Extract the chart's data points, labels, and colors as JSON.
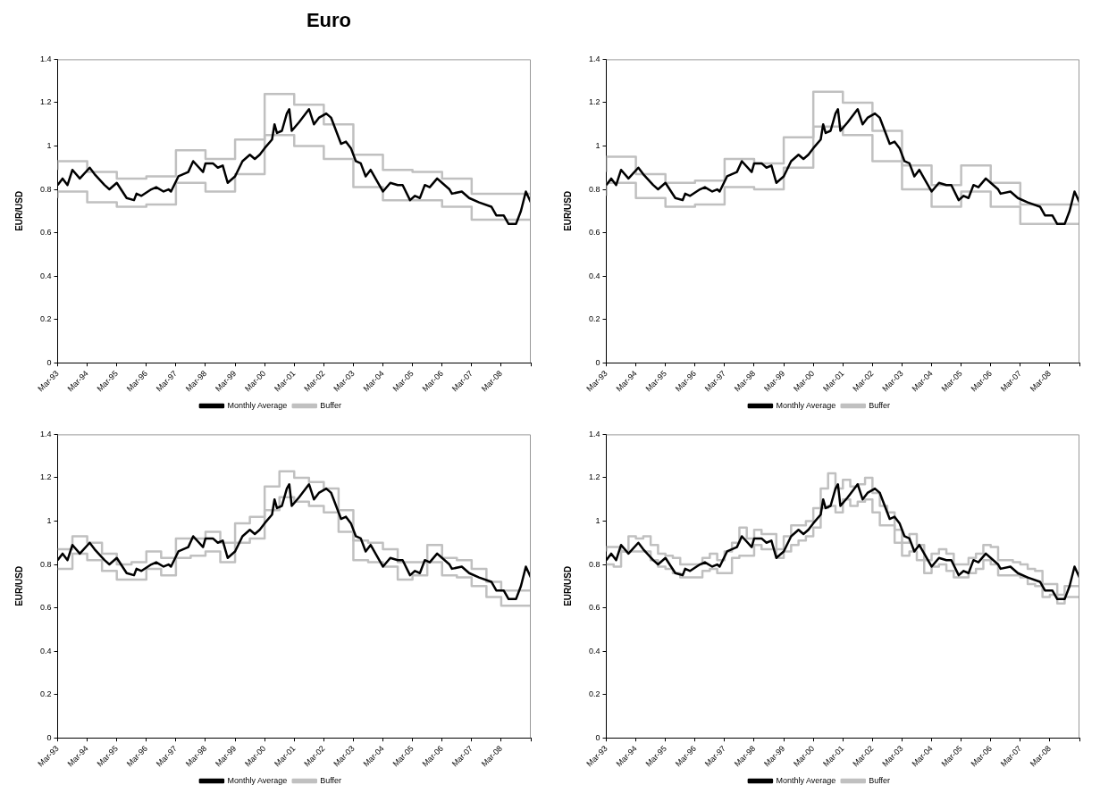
{
  "chart_data": [
    {
      "type": "line",
      "title": "Euro",
      "ylabel": "EUR/USD",
      "legend": "bottom",
      "grid": false,
      "marker": "none",
      "xlim": [
        "1993-03",
        "2009-03"
      ],
      "ylim": [
        0,
        1.4
      ],
      "yticks": [
        0,
        0.2,
        0.4,
        0.6,
        0.8,
        1,
        1.2,
        1.4
      ],
      "xticks": [
        {
          "value": "1993-03",
          "label": "Mar-93"
        },
        {
          "value": "1994-03",
          "label": "Mar-94"
        },
        {
          "value": "1995-03",
          "label": "Mar-95"
        },
        {
          "value": "1996-03",
          "label": "Mar-96"
        },
        {
          "value": "1997-03",
          "label": "Mar-97"
        },
        {
          "value": "1998-03",
          "label": "Mar-98"
        },
        {
          "value": "1999-03",
          "label": "Mar-99"
        },
        {
          "value": "2000-03",
          "label": "Mar-00"
        },
        {
          "value": "2001-03",
          "label": "Mar-01"
        },
        {
          "value": "2002-03",
          "label": "Mar-02"
        },
        {
          "value": "2003-03",
          "label": "Mar-03"
        },
        {
          "value": "2004-03",
          "label": "Mar-04"
        },
        {
          "value": "2005-03",
          "label": "Mar-05"
        },
        {
          "value": "2006-03",
          "label": "Mar-06"
        },
        {
          "value": "2007-03",
          "label": "Mar-07"
        },
        {
          "value": "2008-03",
          "label": "Mar-08"
        },
        {
          "value": "2009-03",
          "label": null
        }
      ],
      "series": [
        {
          "name": "Monthly Average",
          "type": "line",
          "color": "#000000",
          "x": [
            "1993-03",
            "1993-05",
            "1993-07",
            "1993-09",
            "1993-12",
            "1994-04",
            "1994-06",
            "1994-10",
            "1994-12",
            "1995-03",
            "1995-07",
            "1995-10",
            "1995-11",
            "1996-01",
            "1996-05",
            "1996-07",
            "1996-10",
            "1996-12",
            "1997-01",
            "1997-04",
            "1997-08",
            "1997-10",
            "1998-02",
            "1998-03",
            "1998-06",
            "1998-08",
            "1998-10",
            "1998-12",
            "1999-03",
            "1999-06",
            "1999-09",
            "1999-11",
            "2000-01",
            "2000-03",
            "2000-06",
            "2000-07",
            "2000-08",
            "2000-10",
            "2000-12",
            "2001-01",
            "2001-02",
            "2001-05",
            "2001-09",
            "2001-11",
            "2002-01",
            "2002-04",
            "2002-06",
            "2002-10",
            "2002-12",
            "2003-02",
            "2003-04",
            "2003-06",
            "2003-08",
            "2003-10",
            "2003-12",
            "2004-03",
            "2004-06",
            "2004-09",
            "2004-11",
            "2005-02",
            "2005-04",
            "2005-06",
            "2005-08",
            "2005-10",
            "2006-01",
            "2006-03",
            "2006-06",
            "2006-07",
            "2006-11",
            "2007-02",
            "2007-06",
            "2007-11",
            "2008-01",
            "2008-04",
            "2008-06",
            "2008-09",
            "2008-11",
            "2009-01",
            "2009-03"
          ],
          "values": [
            0.82,
            0.85,
            0.82,
            0.89,
            0.85,
            0.9,
            0.87,
            0.82,
            0.8,
            0.83,
            0.76,
            0.75,
            0.78,
            0.77,
            0.8,
            0.81,
            0.79,
            0.8,
            0.79,
            0.86,
            0.88,
            0.93,
            0.88,
            0.92,
            0.92,
            0.9,
            0.91,
            0.83,
            0.86,
            0.93,
            0.96,
            0.94,
            0.96,
            0.99,
            1.03,
            1.1,
            1.06,
            1.07,
            1.15,
            1.17,
            1.07,
            1.11,
            1.17,
            1.1,
            1.13,
            1.15,
            1.13,
            1.01,
            1.02,
            0.99,
            0.93,
            0.92,
            0.86,
            0.89,
            0.85,
            0.79,
            0.83,
            0.82,
            0.82,
            0.75,
            0.77,
            0.76,
            0.82,
            0.81,
            0.85,
            0.83,
            0.8,
            0.78,
            0.79,
            0.76,
            0.74,
            0.72,
            0.68,
            0.68,
            0.64,
            0.64,
            0.7,
            0.79,
            0.74
          ]
        },
        {
          "name": "Buffer",
          "type": "step",
          "color": "#c0c0c0",
          "x": [
            "1993-03",
            "1994-03",
            "1995-03",
            "1996-03",
            "1997-03",
            "1998-03",
            "1999-03",
            "2000-03",
            "2001-03",
            "2002-03",
            "2003-03",
            "2004-03",
            "2005-03",
            "2006-03",
            "2007-03",
            "2008-03",
            "2009-03"
          ],
          "values": [
            0.89,
            0.93,
            0.88,
            0.85,
            0.86,
            0.98,
            0.94,
            1.03,
            1.24,
            1.19,
            1.1,
            0.96,
            0.89,
            0.88,
            0.85,
            0.78,
            0.78
          ]
        },
        {
          "type": "step",
          "color": "#c0c0c0",
          "x": [
            "1993-03",
            "1994-03",
            "1995-03",
            "1996-03",
            "1997-03",
            "1998-03",
            "1999-03",
            "2000-03",
            "2001-03",
            "2002-03",
            "2003-03",
            "2004-03",
            "2005-03",
            "2006-03",
            "2007-03",
            "2008-03",
            "2009-03"
          ],
          "values": [
            0.76,
            0.79,
            0.74,
            0.72,
            0.73,
            0.83,
            0.79,
            0.87,
            1.05,
            1.0,
            0.94,
            0.81,
            0.75,
            0.75,
            0.72,
            0.66,
            0.66
          ]
        }
      ]
    },
    {
      "type": "line",
      "ylabel": "EUR/USD",
      "legend": "bottom",
      "grid": false,
      "marker": "none",
      "xlim": [
        "1993-03",
        "2009-03"
      ],
      "ylim": [
        0,
        1.4
      ],
      "yticks": [
        0,
        0.2,
        0.4,
        0.6,
        0.8,
        1,
        1.2,
        1.4
      ],
      "xticks": [
        {
          "value": "1993-03",
          "label": "Mar-93"
        },
        {
          "value": "1994-03",
          "label": "Mar-94"
        },
        {
          "value": "1995-03",
          "label": "Mar-95"
        },
        {
          "value": "1996-03",
          "label": "Mar-96"
        },
        {
          "value": "1997-03",
          "label": "Mar-97"
        },
        {
          "value": "1998-03",
          "label": "Mar-98"
        },
        {
          "value": "1999-03",
          "label": "Mar-99"
        },
        {
          "value": "2000-03",
          "label": "Mar-00"
        },
        {
          "value": "2001-03",
          "label": "Mar-01"
        },
        {
          "value": "2002-03",
          "label": "Mar-02"
        },
        {
          "value": "2003-03",
          "label": "Mar-03"
        },
        {
          "value": "2004-03",
          "label": "Mar-04"
        },
        {
          "value": "2005-03",
          "label": "Mar-05"
        },
        {
          "value": "2006-03",
          "label": "Mar-06"
        },
        {
          "value": "2007-03",
          "label": "Mar-07"
        },
        {
          "value": "2008-03",
          "label": "Mar-08"
        },
        {
          "value": "2009-03",
          "label": null
        }
      ],
      "series": [
        {
          "name": "Monthly Average",
          "type": "line",
          "color": "#000000",
          "x": [
            "1993-03",
            "1993-05",
            "1993-07",
            "1993-09",
            "1993-12",
            "1994-04",
            "1994-06",
            "1994-10",
            "1994-12",
            "1995-03",
            "1995-07",
            "1995-10",
            "1995-11",
            "1996-01",
            "1996-05",
            "1996-07",
            "1996-10",
            "1996-12",
            "1997-01",
            "1997-04",
            "1997-08",
            "1997-10",
            "1998-02",
            "1998-03",
            "1998-06",
            "1998-08",
            "1998-10",
            "1998-12",
            "1999-03",
            "1999-06",
            "1999-09",
            "1999-11",
            "2000-01",
            "2000-03",
            "2000-06",
            "2000-07",
            "2000-08",
            "2000-10",
            "2000-12",
            "2001-01",
            "2001-02",
            "2001-05",
            "2001-09",
            "2001-11",
            "2002-01",
            "2002-04",
            "2002-06",
            "2002-10",
            "2002-12",
            "2003-02",
            "2003-04",
            "2003-06",
            "2003-08",
            "2003-10",
            "2003-12",
            "2004-03",
            "2004-06",
            "2004-09",
            "2004-11",
            "2005-02",
            "2005-04",
            "2005-06",
            "2005-08",
            "2005-10",
            "2006-01",
            "2006-03",
            "2006-06",
            "2006-07",
            "2006-11",
            "2007-02",
            "2007-06",
            "2007-11",
            "2008-01",
            "2008-04",
            "2008-06",
            "2008-09",
            "2008-11",
            "2009-01",
            "2009-03"
          ],
          "values": [
            0.82,
            0.85,
            0.82,
            0.89,
            0.85,
            0.9,
            0.87,
            0.82,
            0.8,
            0.83,
            0.76,
            0.75,
            0.78,
            0.77,
            0.8,
            0.81,
            0.79,
            0.8,
            0.79,
            0.86,
            0.88,
            0.93,
            0.88,
            0.92,
            0.92,
            0.9,
            0.91,
            0.83,
            0.86,
            0.93,
            0.96,
            0.94,
            0.96,
            0.99,
            1.03,
            1.1,
            1.06,
            1.07,
            1.15,
            1.17,
            1.07,
            1.11,
            1.17,
            1.1,
            1.13,
            1.15,
            1.13,
            1.01,
            1.02,
            0.99,
            0.93,
            0.92,
            0.86,
            0.89,
            0.85,
            0.79,
            0.83,
            0.82,
            0.82,
            0.75,
            0.77,
            0.76,
            0.82,
            0.81,
            0.85,
            0.83,
            0.8,
            0.78,
            0.79,
            0.76,
            0.74,
            0.72,
            0.68,
            0.68,
            0.64,
            0.64,
            0.7,
            0.79,
            0.74
          ]
        },
        {
          "name": "Buffer",
          "type": "step",
          "color": "#c0c0c0",
          "x": [
            "1993-03",
            "1994-03",
            "1995-03",
            "1996-03",
            "1997-03",
            "1998-03",
            "1999-03",
            "2000-03",
            "2001-03",
            "2002-03",
            "2003-03",
            "2004-03",
            "2005-03",
            "2006-03",
            "2007-03",
            "2008-03",
            "2009-03"
          ],
          "values": [
            0.88,
            0.95,
            0.87,
            0.83,
            0.84,
            0.94,
            0.92,
            1.04,
            1.25,
            1.2,
            1.07,
            0.91,
            0.82,
            0.91,
            0.83,
            0.73,
            0.73
          ]
        },
        {
          "type": "step",
          "color": "#c0c0c0",
          "x": [
            "1993-03",
            "1994-03",
            "1995-03",
            "1996-03",
            "1997-03",
            "1998-03",
            "1999-03",
            "2000-03",
            "2001-03",
            "2002-03",
            "2003-03",
            "2004-03",
            "2005-03",
            "2006-03",
            "2007-03",
            "2008-03",
            "2009-03"
          ],
          "values": [
            0.77,
            0.83,
            0.76,
            0.72,
            0.73,
            0.81,
            0.8,
            0.9,
            1.09,
            1.05,
            0.93,
            0.8,
            0.72,
            0.79,
            0.72,
            0.64,
            0.64
          ]
        }
      ]
    },
    {
      "type": "line",
      "ylabel": "EUR/USD",
      "legend": "bottom",
      "grid": false,
      "marker": "none",
      "xlim": [
        "1993-03",
        "2009-03"
      ],
      "ylim": [
        0,
        1.4
      ],
      "yticks": [
        0,
        0.2,
        0.4,
        0.6,
        0.8,
        1,
        1.2,
        1.4
      ],
      "xticks": [
        {
          "value": "1993-03",
          "label": "Mar-93"
        },
        {
          "value": "1994-03",
          "label": "Mar-94"
        },
        {
          "value": "1995-03",
          "label": "Mar-95"
        },
        {
          "value": "1996-03",
          "label": "Mar-96"
        },
        {
          "value": "1997-03",
          "label": "Mar-97"
        },
        {
          "value": "1998-03",
          "label": "Mar-98"
        },
        {
          "value": "1999-03",
          "label": "Mar-99"
        },
        {
          "value": "2000-03",
          "label": "Mar-00"
        },
        {
          "value": "2001-03",
          "label": "Mar-01"
        },
        {
          "value": "2002-03",
          "label": "Mar-02"
        },
        {
          "value": "2003-03",
          "label": "Mar-03"
        },
        {
          "value": "2004-03",
          "label": "Mar-04"
        },
        {
          "value": "2005-03",
          "label": "Mar-05"
        },
        {
          "value": "2006-03",
          "label": "Mar-06"
        },
        {
          "value": "2007-03",
          "label": "Mar-07"
        },
        {
          "value": "2008-03",
          "label": "Mar-08"
        },
        {
          "value": "2009-03",
          "label": null
        }
      ],
      "series": [
        {
          "name": "Monthly Average",
          "type": "line",
          "color": "#000000",
          "x": [
            "1993-03",
            "1993-05",
            "1993-07",
            "1993-09",
            "1993-12",
            "1994-04",
            "1994-06",
            "1994-10",
            "1994-12",
            "1995-03",
            "1995-07",
            "1995-10",
            "1995-11",
            "1996-01",
            "1996-05",
            "1996-07",
            "1996-10",
            "1996-12",
            "1997-01",
            "1997-04",
            "1997-08",
            "1997-10",
            "1998-02",
            "1998-03",
            "1998-06",
            "1998-08",
            "1998-10",
            "1998-12",
            "1999-03",
            "1999-06",
            "1999-09",
            "1999-11",
            "2000-01",
            "2000-03",
            "2000-06",
            "2000-07",
            "2000-08",
            "2000-10",
            "2000-12",
            "2001-01",
            "2001-02",
            "2001-05",
            "2001-09",
            "2001-11",
            "2002-01",
            "2002-04",
            "2002-06",
            "2002-10",
            "2002-12",
            "2003-02",
            "2003-04",
            "2003-06",
            "2003-08",
            "2003-10",
            "2003-12",
            "2004-03",
            "2004-06",
            "2004-09",
            "2004-11",
            "2005-02",
            "2005-04",
            "2005-06",
            "2005-08",
            "2005-10",
            "2006-01",
            "2006-03",
            "2006-06",
            "2006-07",
            "2006-11",
            "2007-02",
            "2007-06",
            "2007-11",
            "2008-01",
            "2008-04",
            "2008-06",
            "2008-09",
            "2008-11",
            "2009-01",
            "2009-03"
          ],
          "values": [
            0.82,
            0.85,
            0.82,
            0.89,
            0.85,
            0.9,
            0.87,
            0.82,
            0.8,
            0.83,
            0.76,
            0.75,
            0.78,
            0.77,
            0.8,
            0.81,
            0.79,
            0.8,
            0.79,
            0.86,
            0.88,
            0.93,
            0.88,
            0.92,
            0.92,
            0.9,
            0.91,
            0.83,
            0.86,
            0.93,
            0.96,
            0.94,
            0.96,
            0.99,
            1.03,
            1.1,
            1.06,
            1.07,
            1.15,
            1.17,
            1.07,
            1.11,
            1.17,
            1.1,
            1.13,
            1.15,
            1.13,
            1.01,
            1.02,
            0.99,
            0.93,
            0.92,
            0.86,
            0.89,
            0.85,
            0.79,
            0.83,
            0.82,
            0.82,
            0.75,
            0.77,
            0.76,
            0.82,
            0.81,
            0.85,
            0.83,
            0.8,
            0.78,
            0.79,
            0.76,
            0.74,
            0.72,
            0.68,
            0.68,
            0.64,
            0.64,
            0.7,
            0.79,
            0.74
          ]
        },
        {
          "name": "Buffer",
          "type": "step",
          "color": "#c0c0c0",
          "x": [
            "1993-03",
            "1993-09",
            "1994-03",
            "1994-09",
            "1995-03",
            "1995-09",
            "1996-03",
            "1996-09",
            "1997-03",
            "1997-09",
            "1998-03",
            "1998-09",
            "1999-03",
            "1999-09",
            "2000-03",
            "2000-09",
            "2001-03",
            "2001-09",
            "2002-03",
            "2002-09",
            "2003-03",
            "2003-09",
            "2004-03",
            "2004-09",
            "2005-03",
            "2005-09",
            "2006-03",
            "2006-09",
            "2007-03",
            "2007-09",
            "2008-03",
            "2008-09",
            "2009-03"
          ],
          "values": [
            0.87,
            0.87,
            0.93,
            0.9,
            0.85,
            0.8,
            0.81,
            0.86,
            0.83,
            0.92,
            0.92,
            0.95,
            0.9,
            0.99,
            1.02,
            1.16,
            1.23,
            1.2,
            1.18,
            1.15,
            1.05,
            0.91,
            0.9,
            0.87,
            0.81,
            0.81,
            0.89,
            0.83,
            0.82,
            0.78,
            0.72,
            0.68,
            0.68
          ]
        },
        {
          "type": "step",
          "color": "#c0c0c0",
          "x": [
            "1993-03",
            "1993-09",
            "1994-03",
            "1994-09",
            "1995-03",
            "1995-09",
            "1996-03",
            "1996-09",
            "1997-03",
            "1997-09",
            "1998-03",
            "1998-09",
            "1999-03",
            "1999-09",
            "2000-03",
            "2000-09",
            "2001-03",
            "2001-09",
            "2002-03",
            "2002-09",
            "2003-03",
            "2003-09",
            "2004-03",
            "2004-09",
            "2005-03",
            "2005-09",
            "2006-03",
            "2006-09",
            "2007-03",
            "2007-09",
            "2008-03",
            "2008-09",
            "2009-03"
          ],
          "values": [
            0.78,
            0.78,
            0.85,
            0.82,
            0.77,
            0.73,
            0.73,
            0.78,
            0.75,
            0.83,
            0.84,
            0.86,
            0.81,
            0.9,
            0.92,
            1.05,
            1.11,
            1.09,
            1.07,
            1.04,
            0.95,
            0.82,
            0.81,
            0.79,
            0.73,
            0.75,
            0.81,
            0.75,
            0.74,
            0.7,
            0.65,
            0.61,
            0.61
          ]
        }
      ]
    },
    {
      "type": "line",
      "ylabel": "EUR/USD",
      "legend": "bottom",
      "grid": false,
      "marker": "none",
      "xlim": [
        "1993-03",
        "2009-03"
      ],
      "ylim": [
        0,
        1.4
      ],
      "yticks": [
        0,
        0.2,
        0.4,
        0.6,
        0.8,
        1,
        1.2,
        1.4
      ],
      "xticks": [
        {
          "value": "1993-03",
          "label": "Mar-93"
        },
        {
          "value": "1994-03",
          "label": "Mar-94"
        },
        {
          "value": "1995-03",
          "label": "Mar-95"
        },
        {
          "value": "1996-03",
          "label": "Mar-96"
        },
        {
          "value": "1997-03",
          "label": "Mar-97"
        },
        {
          "value": "1998-03",
          "label": "Mar-98"
        },
        {
          "value": "1999-03",
          "label": "Mar-99"
        },
        {
          "value": "2000-03",
          "label": "Mar-00"
        },
        {
          "value": "2001-03",
          "label": "Mar-01"
        },
        {
          "value": "2002-03",
          "label": "Mar-02"
        },
        {
          "value": "2003-03",
          "label": "Mar-03"
        },
        {
          "value": "2004-03",
          "label": "Mar-04"
        },
        {
          "value": "2005-03",
          "label": "Mar-05"
        },
        {
          "value": "2006-03",
          "label": "Mar-06"
        },
        {
          "value": "2007-03",
          "label": "Mar-07"
        },
        {
          "value": "2008-03",
          "label": "Mar-08"
        },
        {
          "value": "2009-03",
          "label": null
        }
      ],
      "series": [
        {
          "name": "Monthly Average",
          "type": "line",
          "color": "#000000",
          "x": [
            "1993-03",
            "1993-05",
            "1993-07",
            "1993-09",
            "1993-12",
            "1994-04",
            "1994-06",
            "1994-10",
            "1994-12",
            "1995-03",
            "1995-07",
            "1995-10",
            "1995-11",
            "1996-01",
            "1996-05",
            "1996-07",
            "1996-10",
            "1996-12",
            "1997-01",
            "1997-04",
            "1997-08",
            "1997-10",
            "1998-02",
            "1998-03",
            "1998-06",
            "1998-08",
            "1998-10",
            "1998-12",
            "1999-03",
            "1999-06",
            "1999-09",
            "1999-11",
            "2000-01",
            "2000-03",
            "2000-06",
            "2000-07",
            "2000-08",
            "2000-10",
            "2000-12",
            "2001-01",
            "2001-02",
            "2001-05",
            "2001-09",
            "2001-11",
            "2002-01",
            "2002-04",
            "2002-06",
            "2002-10",
            "2002-12",
            "2003-02",
            "2003-04",
            "2003-06",
            "2003-08",
            "2003-10",
            "2003-12",
            "2004-03",
            "2004-06",
            "2004-09",
            "2004-11",
            "2005-02",
            "2005-04",
            "2005-06",
            "2005-08",
            "2005-10",
            "2006-01",
            "2006-03",
            "2006-06",
            "2006-07",
            "2006-11",
            "2007-02",
            "2007-06",
            "2007-11",
            "2008-01",
            "2008-04",
            "2008-06",
            "2008-09",
            "2008-11",
            "2009-01",
            "2009-03"
          ],
          "values": [
            0.82,
            0.85,
            0.82,
            0.89,
            0.85,
            0.9,
            0.87,
            0.82,
            0.8,
            0.83,
            0.76,
            0.75,
            0.78,
            0.77,
            0.8,
            0.81,
            0.79,
            0.8,
            0.79,
            0.86,
            0.88,
            0.93,
            0.88,
            0.92,
            0.92,
            0.9,
            0.91,
            0.83,
            0.86,
            0.93,
            0.96,
            0.94,
            0.96,
            0.99,
            1.03,
            1.1,
            1.06,
            1.07,
            1.15,
            1.17,
            1.07,
            1.11,
            1.17,
            1.1,
            1.13,
            1.15,
            1.13,
            1.01,
            1.02,
            0.99,
            0.93,
            0.92,
            0.86,
            0.89,
            0.85,
            0.79,
            0.83,
            0.82,
            0.82,
            0.75,
            0.77,
            0.76,
            0.82,
            0.81,
            0.85,
            0.83,
            0.8,
            0.78,
            0.79,
            0.76,
            0.74,
            0.72,
            0.68,
            0.68,
            0.64,
            0.64,
            0.7,
            0.79,
            0.74
          ]
        },
        {
          "name": "Buffer",
          "type": "step",
          "color": "#c0c0c0",
          "x": [
            "1993-03",
            "1993-06",
            "1993-09",
            "1993-12",
            "1994-03",
            "1994-06",
            "1994-09",
            "1994-12",
            "1995-03",
            "1995-06",
            "1995-09",
            "1995-12",
            "1996-03",
            "1996-06",
            "1996-09",
            "1996-12",
            "1997-03",
            "1997-06",
            "1997-09",
            "1997-12",
            "1998-03",
            "1998-06",
            "1998-09",
            "1998-12",
            "1999-03",
            "1999-06",
            "1999-09",
            "1999-12",
            "2000-03",
            "2000-06",
            "2000-09",
            "2000-12",
            "2001-03",
            "2001-06",
            "2001-09",
            "2001-12",
            "2002-03",
            "2002-06",
            "2002-09",
            "2002-12",
            "2003-03",
            "2003-06",
            "2003-09",
            "2003-12",
            "2004-03",
            "2004-06",
            "2004-09",
            "2004-12",
            "2005-03",
            "2005-06",
            "2005-09",
            "2005-12",
            "2006-03",
            "2006-06",
            "2006-09",
            "2006-12",
            "2007-03",
            "2007-06",
            "2007-09",
            "2007-12",
            "2008-03",
            "2008-06",
            "2008-09",
            "2008-12",
            "2009-03"
          ],
          "values": [
            0.86,
            0.88,
            0.88,
            0.86,
            0.93,
            0.92,
            0.93,
            0.89,
            0.85,
            0.84,
            0.83,
            0.8,
            0.8,
            0.8,
            0.83,
            0.85,
            0.82,
            0.86,
            0.9,
            0.97,
            0.92,
            0.96,
            0.94,
            0.94,
            0.87,
            0.93,
            0.98,
            0.98,
            1.0,
            1.06,
            1.15,
            1.22,
            1.15,
            1.19,
            1.16,
            1.17,
            1.2,
            1.13,
            1.07,
            1.04,
            0.96,
            0.9,
            0.94,
            0.89,
            0.82,
            0.85,
            0.87,
            0.85,
            0.8,
            0.8,
            0.83,
            0.85,
            0.89,
            0.88,
            0.82,
            0.82,
            0.81,
            0.8,
            0.78,
            0.77,
            0.71,
            0.71,
            0.66,
            0.7,
            0.7
          ]
        },
        {
          "type": "step",
          "color": "#c0c0c0",
          "x": [
            "1993-03",
            "1993-06",
            "1993-09",
            "1993-12",
            "1994-03",
            "1994-06",
            "1994-09",
            "1994-12",
            "1995-03",
            "1995-06",
            "1995-09",
            "1995-12",
            "1996-03",
            "1996-06",
            "1996-09",
            "1996-12",
            "1997-03",
            "1997-06",
            "1997-09",
            "1997-12",
            "1998-03",
            "1998-06",
            "1998-09",
            "1998-12",
            "1999-03",
            "1999-06",
            "1999-09",
            "1999-12",
            "2000-03",
            "2000-06",
            "2000-09",
            "2000-12",
            "2001-03",
            "2001-06",
            "2001-09",
            "2001-12",
            "2002-03",
            "2002-06",
            "2002-09",
            "2002-12",
            "2003-03",
            "2003-06",
            "2003-09",
            "2003-12",
            "2004-03",
            "2004-06",
            "2004-09",
            "2004-12",
            "2005-03",
            "2005-06",
            "2005-09",
            "2005-12",
            "2006-03",
            "2006-06",
            "2006-09",
            "2006-12",
            "2007-03",
            "2007-06",
            "2007-09",
            "2007-12",
            "2008-03",
            "2008-06",
            "2008-09",
            "2008-12",
            "2009-03"
          ],
          "values": [
            0.8,
            0.8,
            0.79,
            0.86,
            0.86,
            0.86,
            0.86,
            0.82,
            0.79,
            0.78,
            0.76,
            0.74,
            0.74,
            0.74,
            0.77,
            0.78,
            0.76,
            0.76,
            0.83,
            0.84,
            0.84,
            0.89,
            0.87,
            0.87,
            0.83,
            0.86,
            0.89,
            0.91,
            0.93,
            0.97,
            1.06,
            1.07,
            1.04,
            1.1,
            1.07,
            1.09,
            1.1,
            1.04,
            0.98,
            0.98,
            0.9,
            0.84,
            0.86,
            0.82,
            0.76,
            0.79,
            0.8,
            0.77,
            0.74,
            0.74,
            0.76,
            0.78,
            0.82,
            0.8,
            0.75,
            0.75,
            0.75,
            0.74,
            0.71,
            0.7,
            0.65,
            0.66,
            0.62,
            0.65,
            0.65
          ]
        }
      ]
    }
  ]
}
